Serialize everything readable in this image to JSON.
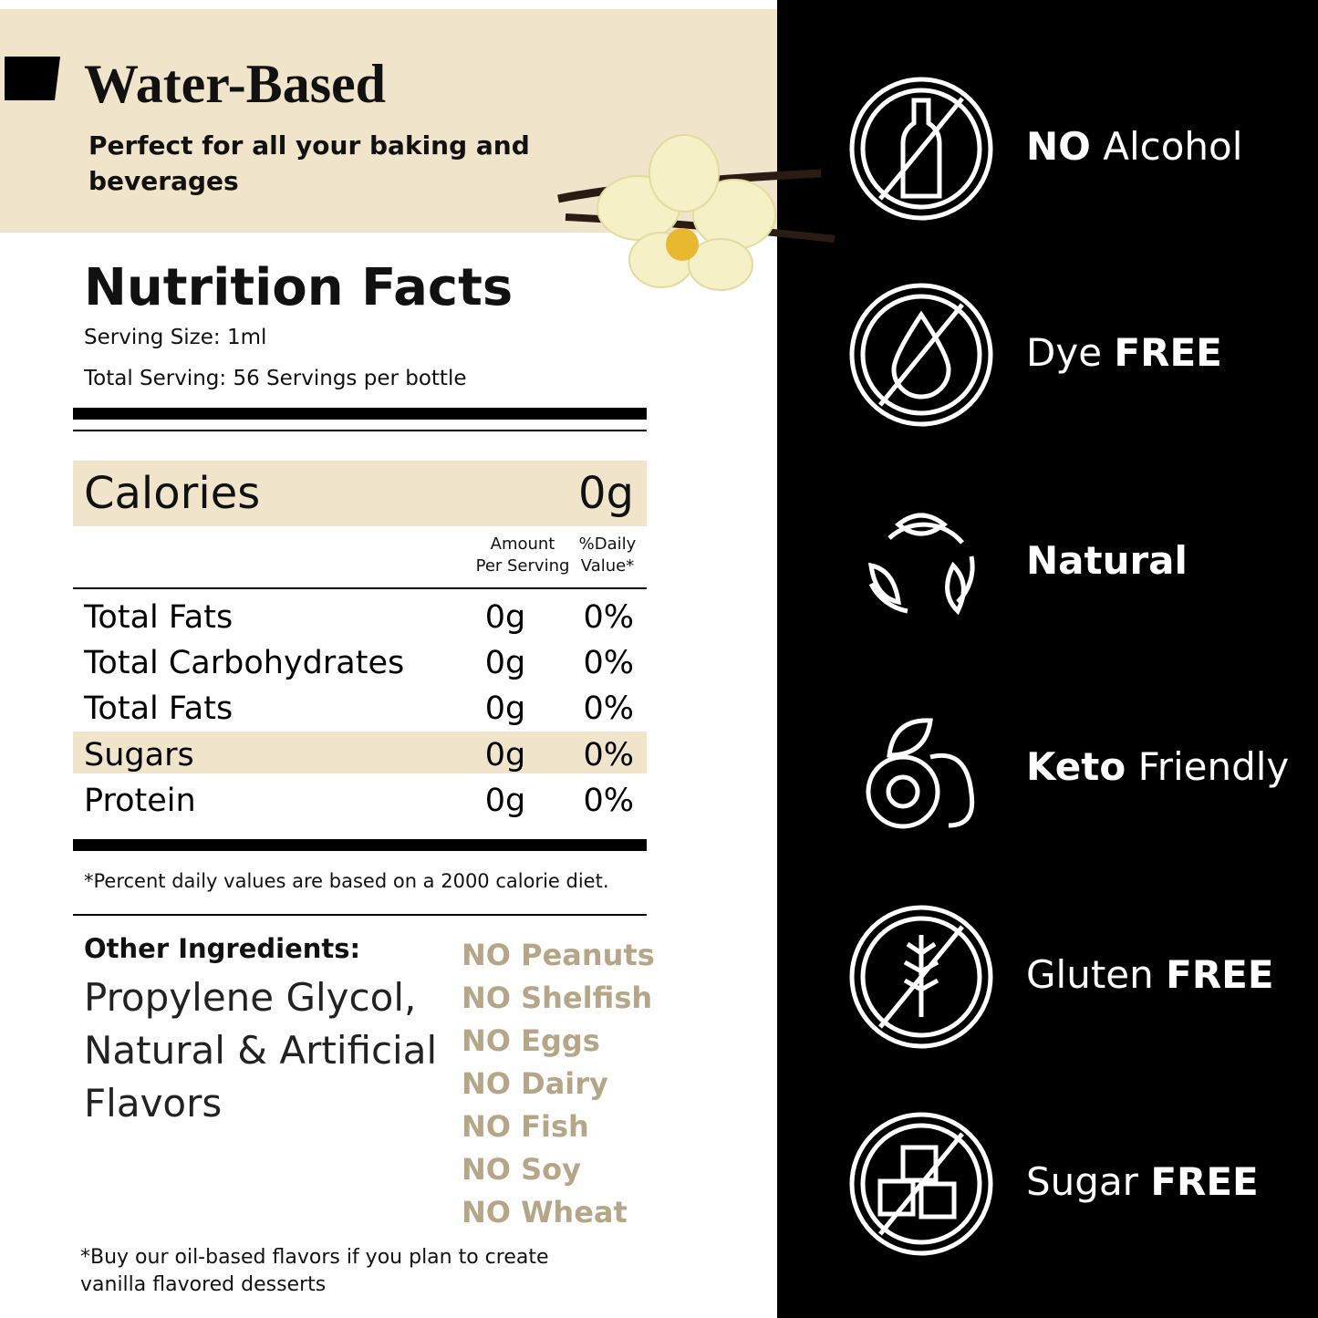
{
  "header": {
    "title": "Water-Based",
    "subtitle": [
      "Perfect for all your baking and",
      "beverages"
    ]
  },
  "nutrition": {
    "title": "Nutrition Facts",
    "serving_size": "Serving Size: 1ml",
    "total_serving": "Total Serving: 56 Servings per bottle",
    "calories": {
      "label": "Calories",
      "value": "0g"
    },
    "columns": {
      "amount": [
        "Amount",
        "Per Serving"
      ],
      "daily_value": [
        "%Daily",
        "Value*"
      ]
    },
    "rows": [
      {
        "name": "Total Fats",
        "amount": "0g",
        "daily_value": "0%"
      },
      {
        "name": "Total Carbohydrates",
        "amount": "0g",
        "daily_value": "0%"
      },
      {
        "name": "Total Fats",
        "amount": "0g",
        "daily_value": "0%"
      },
      {
        "name": "Sugars",
        "amount": "0g",
        "daily_value": "0%"
      },
      {
        "name": "Protein",
        "amount": "0g",
        "daily_value": "0%"
      }
    ],
    "highlighted_row": 3,
    "footnote": "*Percent daily values are based on a 2000 calorie diet."
  },
  "ingredients": {
    "title": "Other Ingredients:",
    "lines": [
      "Propylene Glycol,",
      "Natural & Artificial",
      "Flavors"
    ]
  },
  "allergens": [
    "NO Peanuts",
    "NO Shelfish",
    "NO Eggs",
    "NO Dairy",
    "NO Fish",
    "NO Soy",
    "NO Wheat"
  ],
  "note": [
    "*Buy our oil-based flavors if you plan to create",
    "vanilla flavored desserts"
  ],
  "features": [
    {
      "parts": [
        {
          "text": "NO",
          "weight": "bold"
        },
        {
          "text": "Alcohol",
          "weight": "normal"
        }
      ]
    },
    {
      "parts": [
        {
          "text": "Dye",
          "weight": "normal"
        },
        {
          "text": "FREE",
          "weight": "bold"
        }
      ]
    },
    {
      "parts": [
        {
          "text": "Natural",
          "weight": "bold"
        }
      ]
    },
    {
      "parts": [
        {
          "text": "Keto",
          "weight": "bold"
        },
        {
          "text": "Friendly",
          "weight": "normal"
        }
      ]
    },
    {
      "parts": [
        {
          "text": "Gluten",
          "weight": "normal"
        },
        {
          "text": "FREE",
          "weight": "bold"
        }
      ]
    },
    {
      "parts": [
        {
          "text": "Sugar",
          "weight": "normal"
        },
        {
          "text": "FREE",
          "weight": "bold"
        }
      ]
    }
  ]
}
